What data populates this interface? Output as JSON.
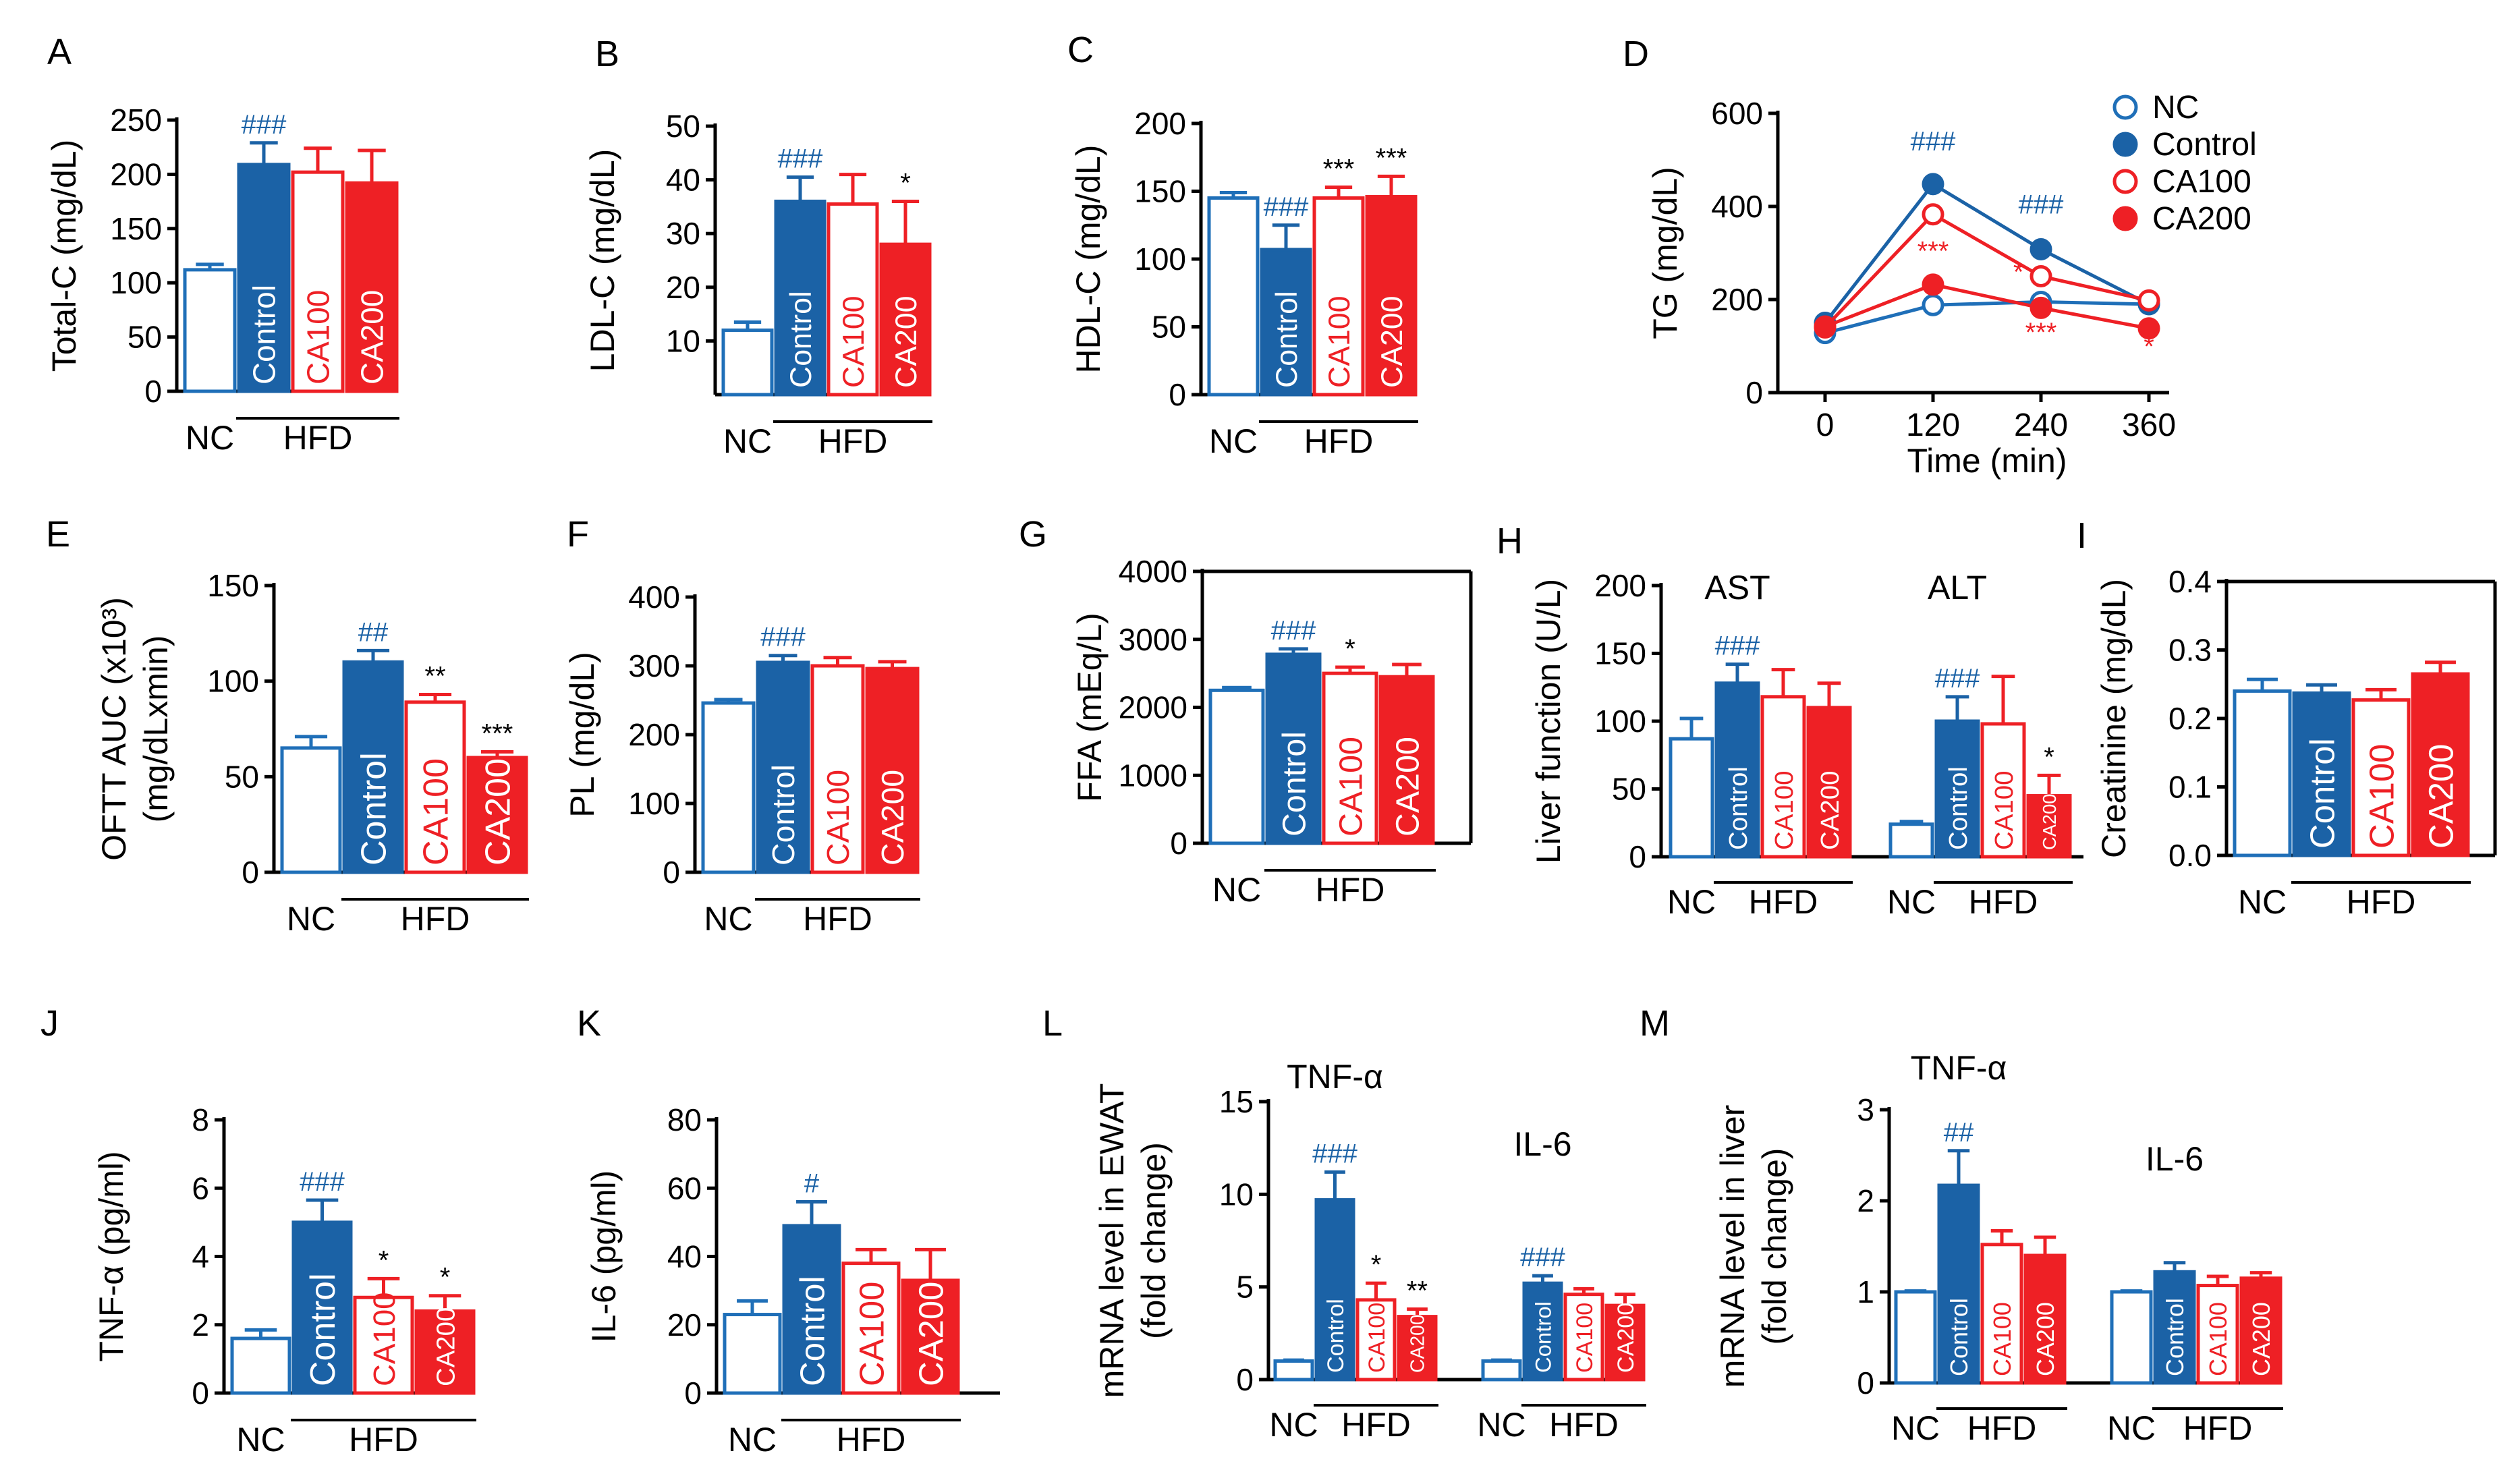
{
  "figure": {
    "colors": {
      "nc": "#1f6fb8",
      "control": "#1b62a6",
      "ca": "#ee2025",
      "hash": "#1b62a6",
      "star": "#ee2025",
      "axis": "#000000"
    },
    "group_label_nc": "NC",
    "group_label_hfd": "HFD"
  },
  "chart_data": [
    {
      "id": "A",
      "panel": "A",
      "type": "bar",
      "ylabel": "Total-C (mg/dL)",
      "ylim": [
        0,
        250
      ],
      "yticks": [
        0,
        50,
        100,
        150,
        200,
        250
      ],
      "categories": [
        "NC",
        "Control",
        "CA100",
        "CA200"
      ],
      "values": [
        112,
        209,
        202,
        192
      ],
      "errors": [
        5,
        20,
        22,
        30
      ],
      "sig": [
        "",
        "###",
        "",
        ""
      ],
      "group": "HFD"
    },
    {
      "id": "B",
      "panel": "B",
      "type": "bar",
      "ylabel": "LDL-C (mg/dL)",
      "ylim": [
        0,
        50
      ],
      "yticks": [
        10,
        20,
        30,
        40,
        50
      ],
      "categories": [
        "NC",
        "Control",
        "CA100",
        "CA200"
      ],
      "values": [
        12,
        36,
        35.5,
        28
      ],
      "errors": [
        1.5,
        4.5,
        5.5,
        8
      ],
      "sig": [
        "",
        "###",
        "",
        "*"
      ],
      "group": "HFD"
    },
    {
      "id": "C",
      "panel": "C",
      "type": "bar",
      "ylabel": "HDL-C (mg/dL)",
      "ylim": [
        0,
        200
      ],
      "yticks": [
        0,
        50,
        100,
        150,
        200
      ],
      "categories": [
        "NC",
        "Control",
        "CA100",
        "CA200"
      ],
      "values": [
        145,
        107,
        145,
        146
      ],
      "errors": [
        4,
        18,
        8,
        15
      ],
      "sig": [
        "",
        "###",
        "***",
        "***"
      ],
      "group": "HFD"
    },
    {
      "id": "D",
      "panel": "D",
      "type": "line",
      "ylabel": "TG (mg/dL)",
      "xlabel": "Time (min)",
      "x": [
        0,
        120,
        240,
        360
      ],
      "ylim": [
        0,
        600
      ],
      "yticks": [
        0,
        200,
        400,
        600
      ],
      "series": [
        {
          "name": "NC",
          "values": [
            128,
            188,
            195,
            190
          ]
        },
        {
          "name": "Control",
          "values": [
            150,
            448,
            308,
            190
          ]
        },
        {
          "name": "CA100",
          "values": [
            140,
            383,
            250,
            198
          ]
        },
        {
          "name": "CA200",
          "values": [
            142,
            232,
            182,
            138
          ]
        }
      ],
      "annotations": [
        {
          "text": "###",
          "x": 120,
          "y": 520,
          "color": "hash"
        },
        {
          "text": "###",
          "x": 240,
          "y": 385,
          "color": "hash"
        },
        {
          "text": "***",
          "x": 120,
          "y": 285,
          "color": "star"
        },
        {
          "text": "*",
          "x": 215,
          "y": 240,
          "color": "star"
        },
        {
          "text": "***",
          "x": 240,
          "y": 110,
          "color": "star"
        },
        {
          "text": "*",
          "x": 360,
          "y": 80,
          "color": "star"
        }
      ]
    },
    {
      "id": "E",
      "panel": "E",
      "type": "bar",
      "ylabel": "OFTT AUC (x10³)",
      "ylabel2": "(mg/dLxmin)",
      "ylim": [
        0,
        150
      ],
      "yticks": [
        0,
        50,
        100,
        150
      ],
      "categories": [
        "NC",
        "Control",
        "CA100",
        "CA200"
      ],
      "values": [
        65,
        110,
        89,
        60
      ],
      "errors": [
        6,
        6,
        4,
        3
      ],
      "sig": [
        "",
        "##",
        "**",
        "***"
      ],
      "group": "HFD"
    },
    {
      "id": "F",
      "panel": "F",
      "type": "bar",
      "ylabel": "PL (mg/dL)",
      "ylim": [
        0,
        400
      ],
      "yticks": [
        0,
        100,
        200,
        300,
        400
      ],
      "categories": [
        "NC",
        "Control",
        "CA100",
        "CA200"
      ],
      "values": [
        246,
        305,
        300,
        296
      ],
      "errors": [
        5,
        10,
        12,
        10
      ],
      "sig": [
        "",
        "###",
        "",
        ""
      ],
      "group": "HFD"
    },
    {
      "id": "G",
      "panel": "G",
      "type": "bar",
      "ylabel": "FFA (mEq/L)",
      "ylim": [
        0,
        4000
      ],
      "yticks": [
        0,
        1000,
        2000,
        3000,
        4000
      ],
      "categories": [
        "NC",
        "Control",
        "CA100",
        "CA200"
      ],
      "values": [
        2250,
        2780,
        2500,
        2450
      ],
      "errors": [
        40,
        80,
        90,
        180
      ],
      "sig": [
        "",
        "###",
        "*",
        ""
      ],
      "group": "HFD"
    },
    {
      "id": "H",
      "panel": "H",
      "type": "bar",
      "ylabel": "Liver function (U/L)",
      "ylim": [
        0,
        200
      ],
      "yticks": [
        0,
        50,
        100,
        150,
        200
      ],
      "subgroups": [
        {
          "title": "AST",
          "categories": [
            "NC",
            "Control",
            "CA100",
            "CA200"
          ],
          "values": [
            87,
            128,
            118,
            110
          ],
          "errors": [
            15,
            14,
            20,
            18
          ],
          "sig": [
            "",
            "###",
            "",
            ""
          ]
        },
        {
          "title": "ALT",
          "categories": [
            "NC",
            "Control",
            "CA100",
            "CA200"
          ],
          "values": [
            24,
            100,
            98,
            45
          ],
          "errors": [
            2,
            18,
            35,
            15
          ],
          "sig": [
            "",
            "###",
            "",
            "*"
          ]
        }
      ],
      "group": "HFD"
    },
    {
      "id": "I",
      "panel": "I",
      "type": "bar",
      "ylabel": "Creatinine (mg/dL)",
      "ylim": [
        0,
        0.4
      ],
      "yticks": [
        0.0,
        0.1,
        0.2,
        0.3,
        0.4
      ],
      "ytick_labels": [
        "0.0",
        "0.1",
        "0.2",
        "0.3",
        "0.4"
      ],
      "categories": [
        "NC",
        "Control",
        "CA100",
        "CA200"
      ],
      "values": [
        0.24,
        0.237,
        0.227,
        0.265
      ],
      "errors": [
        0.017,
        0.012,
        0.015,
        0.017
      ],
      "sig": [
        "",
        "",
        "",
        ""
      ],
      "group": "HFD"
    },
    {
      "id": "J",
      "panel": "J",
      "type": "bar",
      "ylabel": "TNF-α (pg/ml)",
      "ylim": [
        0,
        8
      ],
      "yticks": [
        0,
        2,
        4,
        6,
        8
      ],
      "categories": [
        "NC",
        "Control",
        "CA100",
        "CA200"
      ],
      "values": [
        1.6,
        5.0,
        2.8,
        2.4
      ],
      "errors": [
        0.25,
        0.65,
        0.55,
        0.45
      ],
      "sig": [
        "",
        "###",
        "*",
        "*"
      ],
      "group": "HFD"
    },
    {
      "id": "K",
      "panel": "K",
      "type": "bar",
      "ylabel": "IL-6 (pg/ml)",
      "ylim": [
        0,
        80
      ],
      "yticks": [
        0,
        20,
        40,
        60,
        80
      ],
      "categories": [
        "NC",
        "Control",
        "CA100",
        "CA200"
      ],
      "values": [
        23,
        49,
        38,
        33
      ],
      "errors": [
        4,
        7,
        4,
        9
      ],
      "sig": [
        "",
        "#",
        "",
        ""
      ],
      "group": "HFD"
    },
    {
      "id": "L",
      "panel": "L",
      "type": "bar",
      "ylabel": "mRNA level in EWAT",
      "ylabel2": "(fold change)",
      "ylim": [
        0,
        15
      ],
      "yticks": [
        0,
        5,
        10,
        15
      ],
      "subgroups": [
        {
          "title": "TNF-α",
          "categories": [
            "NC",
            "Control",
            "CA100",
            "CA200"
          ],
          "values": [
            1.0,
            9.7,
            4.3,
            3.4
          ],
          "errors": [
            0.05,
            1.5,
            0.9,
            0.4
          ],
          "sig": [
            "",
            "###",
            "*",
            "**"
          ]
        },
        {
          "title": "IL-6",
          "categories": [
            "NC",
            "Control",
            "CA100",
            "CA200"
          ],
          "values": [
            1.0,
            5.2,
            4.6,
            4.0
          ],
          "errors": [
            0.05,
            0.4,
            0.3,
            0.6
          ],
          "sig": [
            "",
            "###",
            "",
            ""
          ]
        }
      ],
      "group": "HFD"
    },
    {
      "id": "M",
      "panel": "M",
      "type": "bar",
      "ylabel": "mRNA level in liver",
      "ylabel2": "(fold change)",
      "ylim": [
        0,
        3
      ],
      "yticks": [
        0,
        1,
        2,
        3
      ],
      "subgroups": [
        {
          "title": "TNF-α",
          "categories": [
            "NC",
            "Control",
            "CA100",
            "CA200"
          ],
          "values": [
            1.0,
            2.17,
            1.52,
            1.4
          ],
          "errors": [
            0.01,
            0.38,
            0.15,
            0.2
          ],
          "sig": [
            "",
            "##",
            "",
            ""
          ]
        },
        {
          "title": "IL-6",
          "categories": [
            "NC",
            "Control",
            "CA100",
            "CA200"
          ],
          "values": [
            1.0,
            1.22,
            1.07,
            1.15
          ],
          "errors": [
            0.01,
            0.1,
            0.1,
            0.06
          ],
          "sig": [
            "",
            "",
            "",
            ""
          ]
        }
      ],
      "group": "HFD"
    }
  ]
}
